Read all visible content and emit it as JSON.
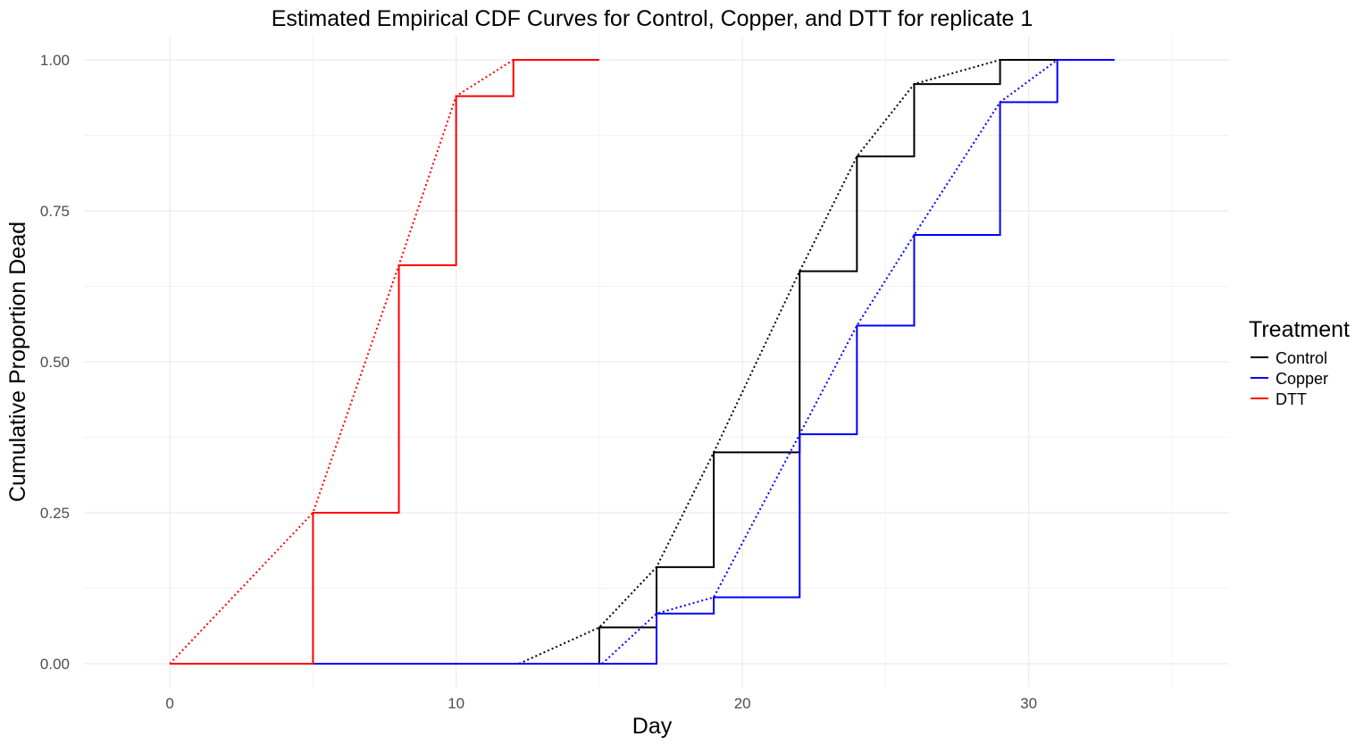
{
  "chart_data": {
    "type": "line",
    "title": "Estimated Empirical CDF Curves for Control, Copper, and DTT for replicate 1",
    "xlabel": "Day",
    "ylabel": "Cumulative Proportion Dead",
    "xlim": [
      -3,
      37
    ],
    "ylim": [
      -0.04,
      1.04
    ],
    "x_ticks": [
      0,
      10,
      20,
      30
    ],
    "x_tick_labels": [
      "0",
      "10",
      "20",
      "30"
    ],
    "y_ticks": [
      0,
      0.25,
      0.5,
      0.75,
      1
    ],
    "y_tick_labels": [
      "0.00",
      "0.25",
      "0.50",
      "0.75",
      "1.00"
    ],
    "x_minor": [
      5,
      15,
      25,
      35
    ],
    "y_minor": [
      0.125,
      0.375,
      0.625,
      0.875
    ],
    "grid": true,
    "theme": "minimal",
    "legend": {
      "title": "Treatment",
      "position": "right",
      "entries": [
        {
          "label": "Control",
          "color": "#000000"
        },
        {
          "label": "Copper",
          "color": "#0000ff"
        },
        {
          "label": "DTT",
          "color": "#ff0000"
        }
      ]
    },
    "series": [
      {
        "name": "Control",
        "color": "#000000",
        "step": {
          "x": [
            0,
            15,
            17,
            19,
            22,
            24,
            26,
            29,
            31
          ],
          "y": [
            0,
            0.06,
            0.16,
            0.35,
            0.65,
            0.84,
            0.96,
            1.0,
            1.0
          ]
        },
        "smooth": {
          "x": [
            12.2,
            15,
            17,
            19,
            22,
            24,
            26,
            29,
            31
          ],
          "y": [
            0,
            0.06,
            0.16,
            0.35,
            0.65,
            0.84,
            0.96,
            1.0,
            1.0
          ]
        }
      },
      {
        "name": "Copper",
        "color": "#0000ff",
        "step": {
          "x": [
            0,
            17,
            19,
            22,
            24,
            26,
            29,
            31,
            33
          ],
          "y": [
            0,
            0.083,
            0.11,
            0.38,
            0.56,
            0.71,
            0.93,
            1.0,
            1.0
          ]
        },
        "smooth": {
          "x": [
            15.1,
            17,
            19,
            22,
            24,
            26,
            29,
            31
          ],
          "y": [
            0,
            0.083,
            0.11,
            0.38,
            0.56,
            0.71,
            0.93,
            1.0
          ]
        }
      },
      {
        "name": "DTT",
        "color": "#ff0000",
        "step": {
          "x": [
            0,
            5,
            8,
            10,
            12,
            15
          ],
          "y": [
            0,
            0.25,
            0.66,
            0.94,
            1.0,
            1.0
          ]
        },
        "smooth": {
          "x": [
            0,
            5,
            8,
            10,
            12
          ],
          "y": [
            0,
            0.25,
            0.66,
            0.94,
            1.0
          ]
        }
      }
    ]
  }
}
